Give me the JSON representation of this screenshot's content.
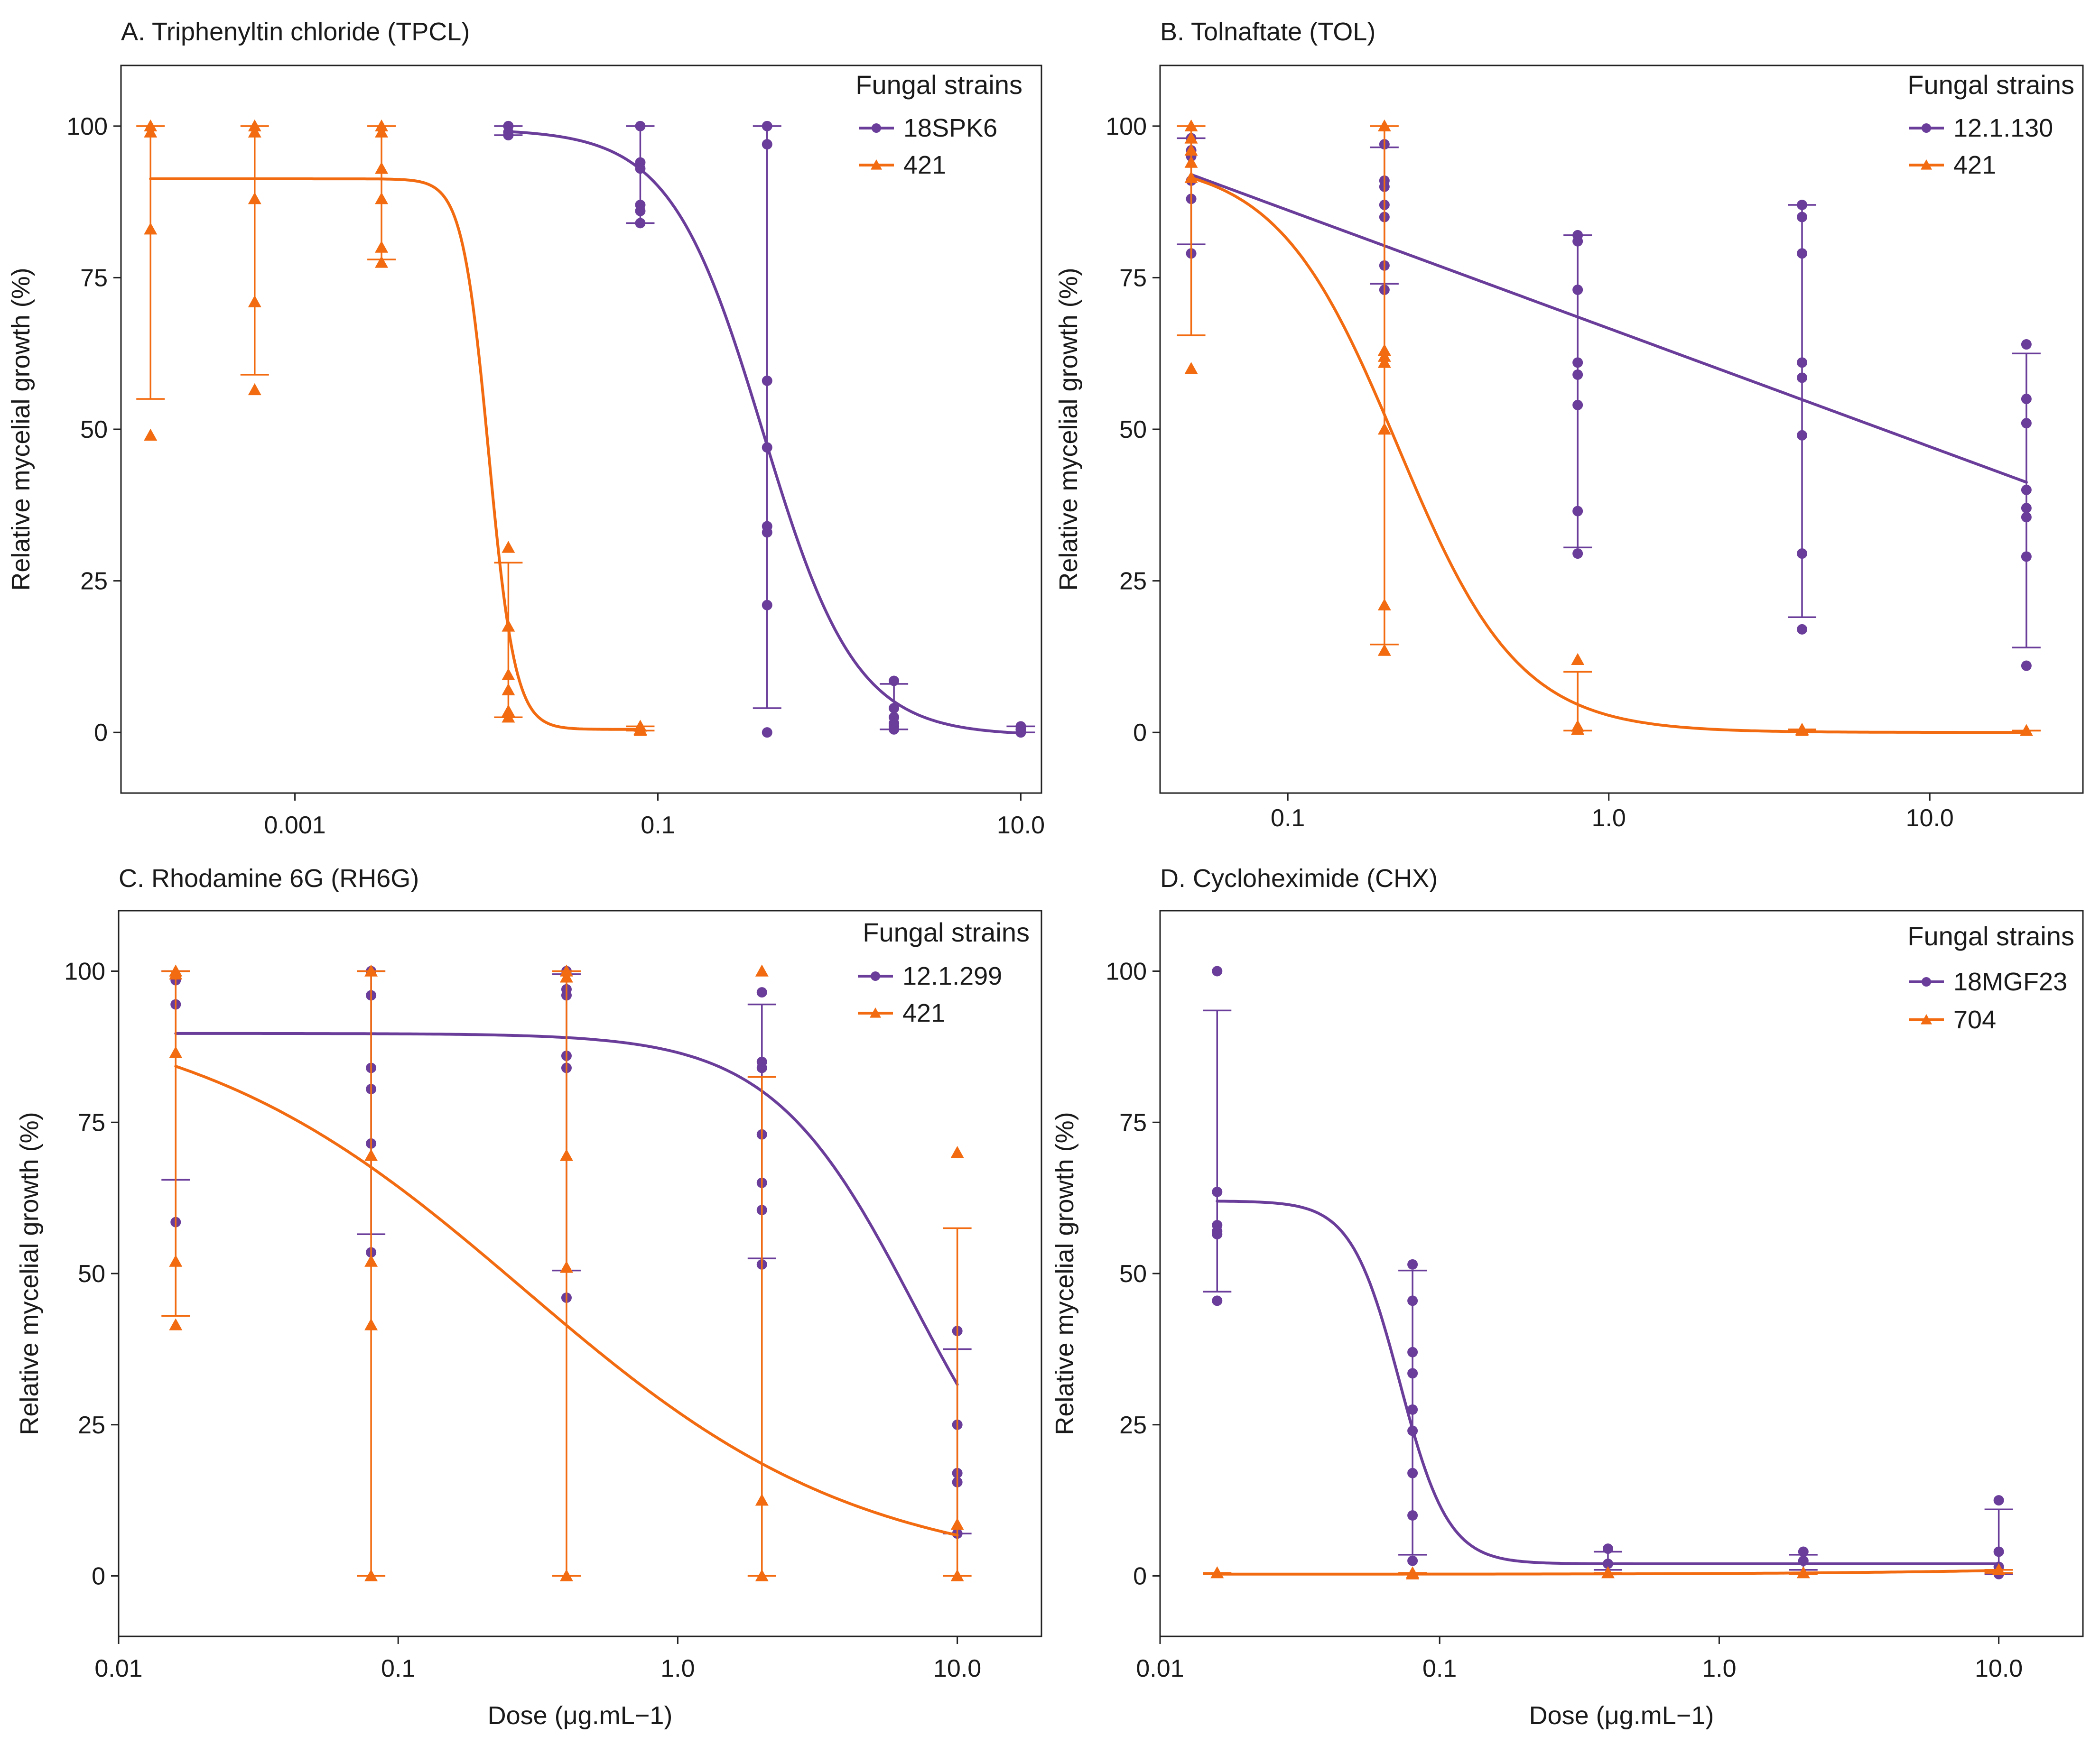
{
  "figure": {
    "shared_xlabel": "Dose (μg.mL−1)",
    "colors": {
      "purple": "#6a3d9a",
      "orange": "#f26b10"
    }
  },
  "chart_data": [
    {
      "id": "A",
      "type": "scatter",
      "title": "A. Triphenyltin chloride (TPCL)",
      "xlabel": "",
      "ylabel": "Relative mycelial growth (%)",
      "xscale": "log",
      "xlim": [
        0.00011,
        13
      ],
      "ylim": [
        -10,
        110
      ],
      "xticks": [
        0.001,
        0.1,
        10.0
      ],
      "xticklabels": [
        "0.001",
        "0.1",
        "10.0"
      ],
      "yticks": [
        0,
        25,
        50,
        75,
        100
      ],
      "yticklabels": [
        "0",
        "25",
        "50",
        "75",
        "100"
      ],
      "legend": {
        "title": "Fungal strains",
        "position": "top-right"
      },
      "series": [
        {
          "name": "18SPK6",
          "color": "#6a3d9a",
          "marker": "circle",
          "curve": {
            "model": "logistic",
            "top": 99.5,
            "bottom": -0.5,
            "ec50": 0.38,
            "hill": 1.7
          },
          "groups": [
            {
              "x": 0.015,
              "points": [
                100,
                99,
                98.5
              ],
              "err": [
                98.5,
                100
              ]
            },
            {
              "x": 0.08,
              "points": [
                100,
                94,
                93,
                87,
                86,
                84
              ],
              "err": [
                84,
                100
              ]
            },
            {
              "x": 0.4,
              "points": [
                100,
                97,
                58,
                47,
                34,
                33,
                21,
                0
              ],
              "err": [
                4,
                100
              ]
            },
            {
              "x": 2.0,
              "points": [
                8.5,
                4,
                2.5,
                1.5,
                1,
                0.5
              ],
              "err": [
                0.5,
                8
              ]
            },
            {
              "x": 10.0,
              "points": [
                1,
                0.5,
                0
              ],
              "err": [
                0,
                1
              ]
            }
          ]
        },
        {
          "name": "421",
          "color": "#f26b10",
          "marker": "triangle",
          "curve": {
            "model": "logistic",
            "top": 91.3,
            "bottom": 0.5,
            "ec50": 0.0117,
            "hill": 6
          },
          "groups": [
            {
              "x": 0.00016,
              "points": [
                100,
                99,
                83,
                49
              ],
              "err": [
                55,
                100
              ]
            },
            {
              "x": 0.0006,
              "points": [
                100,
                99,
                88,
                71,
                56.5
              ],
              "err": [
                59,
                100
              ]
            },
            {
              "x": 0.003,
              "points": [
                100,
                99,
                93,
                88,
                80,
                77.5
              ],
              "err": [
                78,
                100
              ]
            },
            {
              "x": 0.015,
              "points": [
                30.5,
                17.5,
                9.5,
                7,
                3.5,
                2.5
              ],
              "err": [
                2.5,
                28
              ]
            },
            {
              "x": 0.08,
              "points": [
                1,
                0.5,
                0.3
              ],
              "err": [
                0.3,
                1
              ]
            }
          ]
        }
      ]
    },
    {
      "id": "B",
      "type": "scatter",
      "title": "B. Tolnaftate (TOL)",
      "xlabel": "",
      "ylabel": "Relative mycelial growth (%)",
      "xscale": "log",
      "xlim": [
        0.04,
        30
      ],
      "ylim": [
        -10,
        110
      ],
      "xticks": [
        0.1,
        1.0,
        10.0
      ],
      "xticklabels": [
        "0.1",
        "1.0",
        "10.0"
      ],
      "yticks": [
        0,
        25,
        50,
        75,
        100
      ],
      "yticklabels": [
        "0",
        "25",
        "50",
        "75",
        "100"
      ],
      "legend": {
        "title": "Fungal strains",
        "position": "top-right"
      },
      "series": [
        {
          "name": "12.1.130",
          "color": "#6a3d9a",
          "marker": "circle",
          "curve": {
            "model": "loglinear",
            "x0": 0.05,
            "y0": 92,
            "slope": -19.5
          },
          "groups": [
            {
              "x": 0.05,
              "points": [
                98,
                96,
                95,
                91,
                88,
                79
              ],
              "err": [
                80.5,
                98
              ]
            },
            {
              "x": 0.2,
              "points": [
                97,
                91,
                90,
                87,
                85,
                77,
                73
              ],
              "err": [
                74,
                96.5
              ]
            },
            {
              "x": 0.8,
              "points": [
                82,
                81,
                73,
                61,
                59,
                54,
                36.5,
                29.5
              ],
              "err": [
                30.5,
                82
              ]
            },
            {
              "x": 4.0,
              "points": [
                87,
                85,
                79,
                61,
                58.5,
                49,
                29.5,
                17
              ],
              "err": [
                19,
                87
              ]
            },
            {
              "x": 20.0,
              "points": [
                64,
                55,
                51,
                40,
                37,
                35.5,
                29,
                11
              ],
              "err": [
                14,
                62.5
              ]
            }
          ]
        },
        {
          "name": "421",
          "color": "#f26b10",
          "marker": "triangle",
          "curve": {
            "model": "logistic",
            "top": 94.5,
            "bottom": 0,
            "ec50": 0.22,
            "hill": 2.3
          },
          "groups": [
            {
              "x": 0.05,
              "points": [
                100,
                98,
                96,
                94,
                91.5,
                60
              ],
              "err": [
                65.5,
                100
              ]
            },
            {
              "x": 0.2,
              "points": [
                100,
                63,
                62,
                61,
                50,
                21,
                13.5
              ],
              "err": [
                14.5,
                100
              ]
            },
            {
              "x": 0.8,
              "points": [
                12,
                1,
                0.5
              ],
              "err": [
                0.3,
                10
              ]
            },
            {
              "x": 4.0,
              "points": [
                0.5,
                0.3
              ],
              "err": [
                0.3,
                0.5
              ]
            },
            {
              "x": 20.0,
              "points": [
                0.3
              ],
              "err": [
                0.3,
                0.3
              ]
            }
          ]
        }
      ]
    },
    {
      "id": "C",
      "type": "scatter",
      "title": "C. Rhodamine 6G  (RH6G)",
      "xlabel": "Dose (μg.mL−1)",
      "ylabel": "Relative mycelial growth (%)",
      "xscale": "log",
      "xlim": [
        0.01,
        20
      ],
      "ylim": [
        -10,
        110
      ],
      "xticks": [
        0.01,
        0.1,
        1.0,
        10.0
      ],
      "xticklabels": [
        "0.01",
        "0.1",
        "1.0",
        "10.0"
      ],
      "yticks": [
        0,
        25,
        50,
        75,
        100
      ],
      "yticklabels": [
        "0",
        "25",
        "50",
        "75",
        "100"
      ],
      "legend": {
        "title": "Fungal strains",
        "position": "top-right"
      },
      "series": [
        {
          "name": "12.1.299",
          "color": "#6a3d9a",
          "marker": "circle",
          "curve": {
            "model": "logistic",
            "top": 89.7,
            "bottom": 0,
            "ec50": 7.0,
            "hill": 1.7
          },
          "groups": [
            {
              "x": 0.016,
              "points": [
                99,
                98.5,
                94.5,
                58.5
              ],
              "err": [
                65.5,
                100
              ]
            },
            {
              "x": 0.08,
              "points": [
                100,
                96,
                84,
                80.5,
                71.5,
                53.5
              ],
              "err": [
                56.5,
                100
              ]
            },
            {
              "x": 0.4,
              "points": [
                100,
                97,
                96,
                86,
                84,
                46
              ],
              "err": [
                50.5,
                99.5
              ]
            },
            {
              "x": 2.0,
              "points": [
                96.5,
                85,
                84,
                73,
                65,
                60.5,
                51.5
              ],
              "err": [
                52.5,
                94.5
              ]
            },
            {
              "x": 10.0,
              "points": [
                40.5,
                25,
                17,
                15.5,
                7
              ],
              "err": [
                7,
                37.5
              ]
            }
          ]
        },
        {
          "name": "421",
          "color": "#f26b10",
          "marker": "triangle",
          "curve": {
            "model": "logistic",
            "top": 95,
            "bottom": 0,
            "ec50": 0.28,
            "hill": 0.72
          },
          "groups": [
            {
              "x": 0.016,
              "points": [
                100,
                99.5,
                86.5,
                52,
                41.5
              ],
              "err": [
                43,
                100
              ]
            },
            {
              "x": 0.08,
              "points": [
                100,
                69.5,
                52,
                41.5,
                0
              ],
              "err": [
                0,
                100
              ]
            },
            {
              "x": 0.4,
              "points": [
                100,
                99,
                69.5,
                51,
                0
              ],
              "err": [
                0,
                100
              ]
            },
            {
              "x": 2.0,
              "points": [
                100,
                12.5,
                0
              ],
              "err": [
                0,
                82.5
              ]
            },
            {
              "x": 10.0,
              "points": [
                70,
                8.5,
                0
              ],
              "err": [
                0,
                57.5
              ]
            }
          ]
        }
      ]
    },
    {
      "id": "D",
      "type": "scatter",
      "title": "D. Cycloheximide (CHX)",
      "xlabel": "Dose (μg.mL−1)",
      "ylabel": "Relative mycelial growth (%)",
      "xscale": "log",
      "xlim": [
        0.01,
        20
      ],
      "ylim": [
        -10,
        110
      ],
      "xticks": [
        0.01,
        0.1,
        1.0,
        10.0
      ],
      "xticklabels": [
        "0.01",
        "0.1",
        "1.0",
        "10.0"
      ],
      "yticks": [
        0,
        25,
        50,
        75,
        100
      ],
      "yticklabels": [
        "0",
        "25",
        "50",
        "75",
        "100"
      ],
      "legend": {
        "title": "Fungal strains",
        "position": "top-right"
      },
      "series": [
        {
          "name": "18MGF23",
          "color": "#6a3d9a",
          "marker": "circle",
          "curve": {
            "model": "logistic",
            "top": 62,
            "bottom": 2,
            "ec50": 0.072,
            "hill": 5
          },
          "groups": [
            {
              "x": 0.016,
              "points": [
                100,
                63.5,
                58,
                57,
                56.5,
                45.5
              ],
              "err": [
                47,
                93.5
              ]
            },
            {
              "x": 0.08,
              "points": [
                51.5,
                45.5,
                37,
                33.5,
                27.5,
                24,
                17,
                10,
                2.5
              ],
              "err": [
                3.5,
                50.5
              ]
            },
            {
              "x": 0.4,
              "points": [
                4.5,
                2
              ],
              "err": [
                1,
                4
              ]
            },
            {
              "x": 2.0,
              "points": [
                4,
                2.5
              ],
              "err": [
                1,
                3.5
              ]
            },
            {
              "x": 10.0,
              "points": [
                12.5,
                4,
                1.5,
                0.3
              ],
              "err": [
                0.3,
                11
              ]
            }
          ]
        },
        {
          "name": "704",
          "color": "#f26b10",
          "marker": "triangle",
          "curve": {
            "model": "constant",
            "y0": 0.3,
            "y1": 0.9
          },
          "groups": [
            {
              "x": 0.016,
              "points": [
                0.5
              ],
              "err": [
                0.3,
                0.5
              ]
            },
            {
              "x": 0.08,
              "points": [
                0.5,
                0.3
              ],
              "err": [
                0.3,
                0.5
              ]
            },
            {
              "x": 0.4,
              "points": [
                0.5
              ],
              "err": [
                0.3,
                0.5
              ]
            },
            {
              "x": 2.0,
              "points": [
                0.5
              ],
              "err": [
                0.3,
                0.5
              ]
            },
            {
              "x": 10.0,
              "points": [
                1
              ],
              "err": [
                0.5,
                1
              ]
            }
          ]
        }
      ]
    }
  ]
}
